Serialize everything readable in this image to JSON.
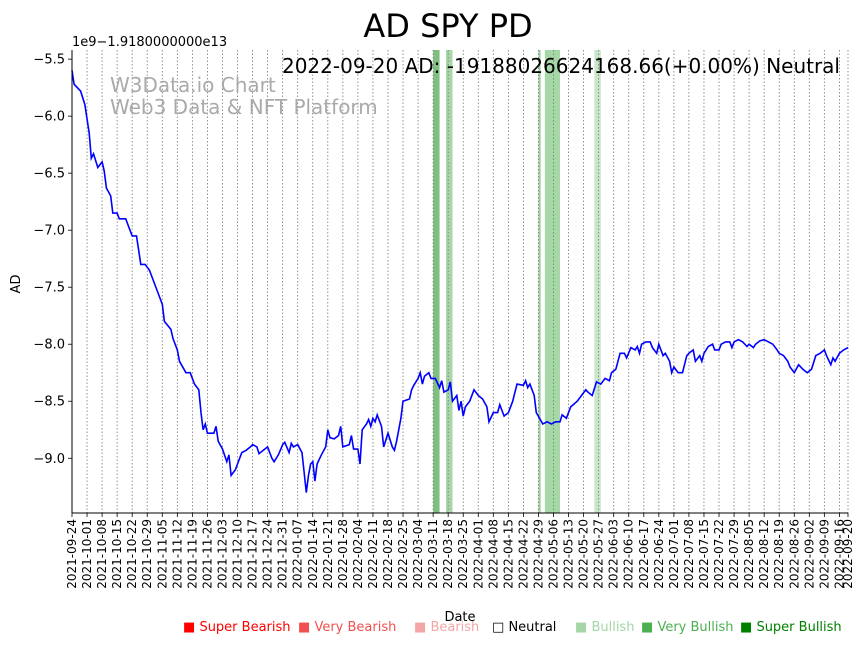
{
  "chart_data": {
    "type": "line",
    "title": "AD SPY PD",
    "xlabel": "Date",
    "ylabel": "AD",
    "offset_label": "1e9−1.9180000000e13",
    "annotation": "2022-09-20 AD: -19188026624168.66(+0.00%) Neutral",
    "watermark": [
      "W3Data.io Chart",
      "Web3 Data & NFT Platform"
    ],
    "ylim": [
      -9.48,
      -5.42
    ],
    "yticks": [
      -5.5,
      -6.0,
      -6.5,
      -7.0,
      -7.5,
      -8.0,
      -8.5,
      -9.0
    ],
    "ytick_labels": [
      "−5.5",
      "−6.0",
      "−6.5",
      "−7.0",
      "−7.5",
      "−8.0",
      "−8.5",
      "−9.0"
    ],
    "x_start": "2021-09-24",
    "x_end": "2022-09-20",
    "xticks": [
      "2021-09-24",
      "2021-10-01",
      "2021-10-08",
      "2021-10-15",
      "2021-10-22",
      "2021-10-29",
      "2021-11-05",
      "2021-11-12",
      "2021-11-19",
      "2021-11-26",
      "2021-12-03",
      "2021-12-10",
      "2021-12-17",
      "2021-12-24",
      "2021-12-31",
      "2022-01-07",
      "2022-01-14",
      "2022-01-21",
      "2022-01-28",
      "2022-02-04",
      "2022-02-11",
      "2022-02-18",
      "2022-02-25",
      "2022-03-04",
      "2022-03-11",
      "2022-03-18",
      "2022-03-25",
      "2022-04-01",
      "2022-04-08",
      "2022-04-15",
      "2022-04-22",
      "2022-04-29",
      "2022-05-06",
      "2022-05-13",
      "2022-05-20",
      "2022-05-27",
      "2022-06-03",
      "2022-06-10",
      "2022-06-17",
      "2022-06-24",
      "2022-07-01",
      "2022-07-08",
      "2022-07-15",
      "2022-07-22",
      "2022-07-29",
      "2022-08-05",
      "2022-08-12",
      "2022-08-19",
      "2022-08-26",
      "2022-09-02",
      "2022-09-09",
      "2022-09-16",
      "2022-09-20"
    ],
    "series": [
      {
        "name": "AD",
        "color": "#0000ff",
        "points": [
          [
            "2021-09-24",
            -5.6
          ],
          [
            "2021-09-25",
            -5.72
          ],
          [
            "2021-09-28",
            -5.78
          ],
          [
            "2021-09-30",
            -5.9
          ],
          [
            "2021-10-02",
            -6.15
          ],
          [
            "2021-10-03",
            -6.37
          ],
          [
            "2021-10-04",
            -6.33
          ],
          [
            "2021-10-06",
            -6.45
          ],
          [
            "2021-10-08",
            -6.4
          ],
          [
            "2021-10-09",
            -6.48
          ],
          [
            "2021-10-10",
            -6.63
          ],
          [
            "2021-10-12",
            -6.7
          ],
          [
            "2021-10-13",
            -6.85
          ],
          [
            "2021-10-15",
            -6.85
          ],
          [
            "2021-10-16",
            -6.9
          ],
          [
            "2021-10-19",
            -6.9
          ],
          [
            "2021-10-21",
            -7.0
          ],
          [
            "2021-10-22",
            -7.05
          ],
          [
            "2021-10-24",
            -7.05
          ],
          [
            "2021-10-26",
            -7.3
          ],
          [
            "2021-10-28",
            -7.3
          ],
          [
            "2021-10-30",
            -7.35
          ],
          [
            "2021-11-01",
            -7.45
          ],
          [
            "2021-11-03",
            -7.55
          ],
          [
            "2021-11-05",
            -7.65
          ],
          [
            "2021-11-06",
            -7.8
          ],
          [
            "2021-11-09",
            -7.87
          ],
          [
            "2021-11-10",
            -7.95
          ],
          [
            "2021-11-12",
            -8.05
          ],
          [
            "2021-11-13",
            -8.15
          ],
          [
            "2021-11-16",
            -8.25
          ],
          [
            "2021-11-18",
            -8.25
          ],
          [
            "2021-11-20",
            -8.35
          ],
          [
            "2021-11-22",
            -8.4
          ],
          [
            "2021-11-23",
            -8.6
          ],
          [
            "2021-11-24",
            -8.75
          ],
          [
            "2021-11-25",
            -8.7
          ],
          [
            "2021-11-26",
            -8.78
          ],
          [
            "2021-11-29",
            -8.78
          ],
          [
            "2021-11-30",
            -8.72
          ],
          [
            "2021-12-01",
            -8.85
          ],
          [
            "2021-12-03",
            -8.92
          ],
          [
            "2021-12-05",
            -9.03
          ],
          [
            "2021-12-06",
            -8.97
          ],
          [
            "2021-12-07",
            -9.15
          ],
          [
            "2021-12-09",
            -9.1
          ],
          [
            "2021-12-10",
            -9.05
          ],
          [
            "2021-12-12",
            -8.95
          ],
          [
            "2021-12-14",
            -8.93
          ],
          [
            "2021-12-16",
            -8.9
          ],
          [
            "2021-12-17",
            -8.88
          ],
          [
            "2021-12-19",
            -8.9
          ],
          [
            "2021-12-20",
            -8.96
          ],
          [
            "2021-12-22",
            -8.93
          ],
          [
            "2021-12-24",
            -8.9
          ],
          [
            "2021-12-26",
            -9.0
          ],
          [
            "2021-12-27",
            -9.03
          ],
          [
            "2021-12-29",
            -8.97
          ],
          [
            "2021-12-31",
            -8.88
          ],
          [
            "2022-01-01",
            -8.86
          ],
          [
            "2022-01-03",
            -8.95
          ],
          [
            "2022-01-04",
            -8.87
          ],
          [
            "2022-01-05",
            -8.9
          ],
          [
            "2022-01-07",
            -8.88
          ],
          [
            "2022-01-09",
            -8.95
          ],
          [
            "2022-01-11",
            -9.3
          ],
          [
            "2022-01-12",
            -9.15
          ],
          [
            "2022-01-13",
            -9.05
          ],
          [
            "2022-01-14",
            -9.03
          ],
          [
            "2022-01-15",
            -9.2
          ],
          [
            "2022-01-16",
            -9.05
          ],
          [
            "2022-01-18",
            -8.97
          ],
          [
            "2022-01-20",
            -8.9
          ],
          [
            "2022-01-21",
            -8.75
          ],
          [
            "2022-01-22",
            -8.82
          ],
          [
            "2022-01-24",
            -8.83
          ],
          [
            "2022-01-26",
            -8.8
          ],
          [
            "2022-01-27",
            -8.72
          ],
          [
            "2022-01-28",
            -8.9
          ],
          [
            "2022-01-31",
            -8.88
          ],
          [
            "2022-02-01",
            -8.8
          ],
          [
            "2022-02-02",
            -8.92
          ],
          [
            "2022-02-04",
            -8.92
          ],
          [
            "2022-02-05",
            -9.05
          ],
          [
            "2022-02-06",
            -8.75
          ],
          [
            "2022-02-08",
            -8.7
          ],
          [
            "2022-02-09",
            -8.66
          ],
          [
            "2022-02-10",
            -8.72
          ],
          [
            "2022-02-11",
            -8.65
          ],
          [
            "2022-02-12",
            -8.68
          ],
          [
            "2022-02-13",
            -8.62
          ],
          [
            "2022-02-15",
            -8.72
          ],
          [
            "2022-02-16",
            -8.9
          ],
          [
            "2022-02-18",
            -8.78
          ],
          [
            "2022-02-20",
            -8.9
          ],
          [
            "2022-02-21",
            -8.93
          ],
          [
            "2022-02-22",
            -8.85
          ],
          [
            "2022-02-24",
            -8.65
          ],
          [
            "2022-02-25",
            -8.5
          ],
          [
            "2022-02-28",
            -8.48
          ],
          [
            "2022-03-01",
            -8.4
          ],
          [
            "2022-03-02",
            -8.36
          ],
          [
            "2022-03-04",
            -8.3
          ],
          [
            "2022-03-05",
            -8.25
          ],
          [
            "2022-03-06",
            -8.35
          ],
          [
            "2022-03-07",
            -8.28
          ],
          [
            "2022-03-09",
            -8.25
          ],
          [
            "2022-03-10",
            -8.3
          ],
          [
            "2022-03-12",
            -8.3
          ],
          [
            "2022-03-14",
            -8.38
          ],
          [
            "2022-03-15",
            -8.32
          ],
          [
            "2022-03-16",
            -8.42
          ],
          [
            "2022-03-18",
            -8.4
          ],
          [
            "2022-03-19",
            -8.33
          ],
          [
            "2022-03-20",
            -8.5
          ],
          [
            "2022-03-22",
            -8.45
          ],
          [
            "2022-03-23",
            -8.58
          ],
          [
            "2022-03-24",
            -8.5
          ],
          [
            "2022-03-25",
            -8.63
          ],
          [
            "2022-03-26",
            -8.55
          ],
          [
            "2022-03-28",
            -8.5
          ],
          [
            "2022-03-30",
            -8.4
          ],
          [
            "2022-04-01",
            -8.45
          ],
          [
            "2022-04-03",
            -8.48
          ],
          [
            "2022-04-05",
            -8.55
          ],
          [
            "2022-04-06",
            -8.68
          ],
          [
            "2022-04-08",
            -8.6
          ],
          [
            "2022-04-10",
            -8.6
          ],
          [
            "2022-04-11",
            -8.53
          ],
          [
            "2022-04-13",
            -8.63
          ],
          [
            "2022-04-15",
            -8.6
          ],
          [
            "2022-04-17",
            -8.5
          ],
          [
            "2022-04-19",
            -8.35
          ],
          [
            "2022-04-22",
            -8.36
          ],
          [
            "2022-04-23",
            -8.32
          ],
          [
            "2022-04-24",
            -8.38
          ],
          [
            "2022-04-25",
            -8.35
          ],
          [
            "2022-04-27",
            -8.45
          ],
          [
            "2022-04-28",
            -8.6
          ],
          [
            "2022-05-01",
            -8.7
          ],
          [
            "2022-05-03",
            -8.68
          ],
          [
            "2022-05-05",
            -8.7
          ],
          [
            "2022-05-07",
            -8.68
          ],
          [
            "2022-05-09",
            -8.68
          ],
          [
            "2022-05-10",
            -8.62
          ],
          [
            "2022-05-12",
            -8.65
          ],
          [
            "2022-05-14",
            -8.55
          ],
          [
            "2022-05-17",
            -8.5
          ],
          [
            "2022-05-19",
            -8.45
          ],
          [
            "2022-05-21",
            -8.4
          ],
          [
            "2022-05-22",
            -8.42
          ],
          [
            "2022-05-24",
            -8.45
          ],
          [
            "2022-05-26",
            -8.33
          ],
          [
            "2022-05-28",
            -8.35
          ],
          [
            "2022-05-30",
            -8.3
          ],
          [
            "2022-06-01",
            -8.32
          ],
          [
            "2022-06-02",
            -8.25
          ],
          [
            "2022-06-04",
            -8.22
          ],
          [
            "2022-06-06",
            -8.08
          ],
          [
            "2022-06-08",
            -8.08
          ],
          [
            "2022-06-09",
            -8.12
          ],
          [
            "2022-06-11",
            -8.03
          ],
          [
            "2022-06-13",
            -8.05
          ],
          [
            "2022-06-14",
            -8.02
          ],
          [
            "2022-06-15",
            -8.08
          ],
          [
            "2022-06-16",
            -8.0
          ],
          [
            "2022-06-18",
            -7.98
          ],
          [
            "2022-06-20",
            -7.98
          ],
          [
            "2022-06-21",
            -8.03
          ],
          [
            "2022-06-23",
            -8.08
          ],
          [
            "2022-06-24",
            -8.0
          ],
          [
            "2022-06-26",
            -8.1
          ],
          [
            "2022-06-27",
            -8.08
          ],
          [
            "2022-06-29",
            -8.15
          ],
          [
            "2022-06-30",
            -8.25
          ],
          [
            "2022-07-01",
            -8.2
          ],
          [
            "2022-07-03",
            -8.25
          ],
          [
            "2022-07-05",
            -8.25
          ],
          [
            "2022-07-07",
            -8.1
          ],
          [
            "2022-07-08",
            -8.08
          ],
          [
            "2022-07-10",
            -8.05
          ],
          [
            "2022-07-11",
            -8.15
          ],
          [
            "2022-07-13",
            -8.1
          ],
          [
            "2022-07-14",
            -8.15
          ],
          [
            "2022-07-15",
            -8.08
          ],
          [
            "2022-07-17",
            -8.02
          ],
          [
            "2022-07-19",
            -8.0
          ],
          [
            "2022-07-20",
            -8.05
          ],
          [
            "2022-07-22",
            -8.05
          ],
          [
            "2022-07-23",
            -8.0
          ],
          [
            "2022-07-25",
            -7.98
          ],
          [
            "2022-07-27",
            -7.98
          ],
          [
            "2022-07-28",
            -8.03
          ],
          [
            "2022-07-29",
            -7.98
          ],
          [
            "2022-07-31",
            -7.96
          ],
          [
            "2022-08-02",
            -7.98
          ],
          [
            "2022-08-04",
            -8.02
          ],
          [
            "2022-08-05",
            -8.0
          ],
          [
            "2022-08-07",
            -8.03
          ],
          [
            "2022-08-08",
            -8.0
          ],
          [
            "2022-08-10",
            -7.97
          ],
          [
            "2022-08-12",
            -7.96
          ],
          [
            "2022-08-14",
            -7.98
          ],
          [
            "2022-08-16",
            -8.0
          ],
          [
            "2022-08-18",
            -8.05
          ],
          [
            "2022-08-19",
            -8.08
          ],
          [
            "2022-08-21",
            -8.1
          ],
          [
            "2022-08-23",
            -8.15
          ],
          [
            "2022-08-24",
            -8.2
          ],
          [
            "2022-08-26",
            -8.25
          ],
          [
            "2022-08-28",
            -8.18
          ],
          [
            "2022-08-30",
            -8.22
          ],
          [
            "2022-09-01",
            -8.25
          ],
          [
            "2022-09-03",
            -8.22
          ],
          [
            "2022-09-05",
            -8.1
          ],
          [
            "2022-09-07",
            -8.08
          ],
          [
            "2022-09-09",
            -8.05
          ],
          [
            "2022-09-10",
            -8.1
          ],
          [
            "2022-09-12",
            -8.18
          ],
          [
            "2022-09-13",
            -8.12
          ],
          [
            "2022-09-14",
            -8.15
          ],
          [
            "2022-09-16",
            -8.08
          ],
          [
            "2022-09-18",
            -8.05
          ],
          [
            "2022-09-20",
            -8.03
          ]
        ]
      }
    ],
    "bands": [
      {
        "start": "2022-03-11",
        "end": "2022-03-14",
        "level": "Super Bullish",
        "color": "#008000",
        "opacity": 0.5
      },
      {
        "start": "2022-03-17",
        "end": "2022-03-20",
        "level": "Very Bullish",
        "color": "#4caf50",
        "opacity": 0.5
      },
      {
        "start": "2022-04-29",
        "end": "2022-04-30",
        "level": "Super Bullish",
        "color": "#008000",
        "opacity": 0.4
      },
      {
        "start": "2022-05-02",
        "end": "2022-05-09",
        "level": "Very Bullish",
        "color": "#4caf50",
        "opacity": 0.5
      },
      {
        "start": "2022-05-25",
        "end": "2022-05-28",
        "level": "Bullish",
        "color": "#a5d6a7",
        "opacity": 0.6
      }
    ]
  },
  "legend": [
    {
      "label": "Super Bearish",
      "color": "#ff0000"
    },
    {
      "label": "Very Bearish",
      "color": "#f05050"
    },
    {
      "label": "Bearish",
      "color": "#f4a6a6"
    },
    {
      "label": "Neutral",
      "color": "#000000"
    },
    {
      "label": "Bullish",
      "color": "#a5d6a7"
    },
    {
      "label": "Very Bullish",
      "color": "#4caf50"
    },
    {
      "label": "Super Bullish",
      "color": "#008000"
    }
  ]
}
